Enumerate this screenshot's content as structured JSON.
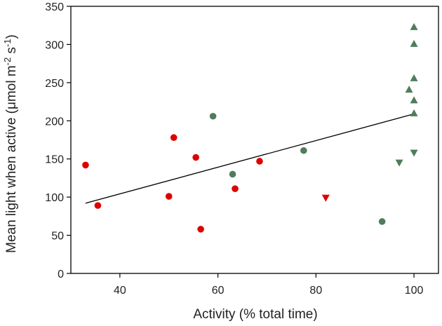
{
  "chart_data": {
    "type": "scatter",
    "title": "",
    "xlabel": "Activity (% total time)",
    "ylabel_main": "Mean light when active (μmol m",
    "ylabel_exp1": "-2",
    "ylabel_mid": " s",
    "ylabel_exp2": "-1",
    "ylabel_end": ")",
    "xlim": [
      30,
      105
    ],
    "ylim": [
      0,
      350
    ],
    "xticks": [
      40,
      60,
      80,
      100
    ],
    "yticks": [
      0,
      50,
      100,
      150,
      200,
      250,
      300,
      350
    ],
    "colors": {
      "red": "#dd0000",
      "green": "#4f7d5c",
      "line": "#000000"
    },
    "series": [
      {
        "name": "red-circles",
        "marker": "circle",
        "color": "red",
        "points": [
          {
            "x": 33,
            "y": 142
          },
          {
            "x": 35.5,
            "y": 89
          },
          {
            "x": 50,
            "y": 101
          },
          {
            "x": 51,
            "y": 178
          },
          {
            "x": 55.5,
            "y": 152
          },
          {
            "x": 56.5,
            "y": 58
          },
          {
            "x": 63.5,
            "y": 111
          },
          {
            "x": 68.5,
            "y": 147
          }
        ]
      },
      {
        "name": "green-circles",
        "marker": "circle",
        "color": "green",
        "points": [
          {
            "x": 59,
            "y": 206
          },
          {
            "x": 63,
            "y": 130
          },
          {
            "x": 77.5,
            "y": 161
          },
          {
            "x": 93.5,
            "y": 68
          }
        ]
      },
      {
        "name": "green-triangles-up",
        "marker": "triangle-up",
        "color": "green",
        "points": [
          {
            "x": 100,
            "y": 323
          },
          {
            "x": 100,
            "y": 301
          },
          {
            "x": 100,
            "y": 256
          },
          {
            "x": 99,
            "y": 241
          },
          {
            "x": 100,
            "y": 227
          },
          {
            "x": 100,
            "y": 210
          }
        ]
      },
      {
        "name": "green-triangles-down",
        "marker": "triangle-down",
        "color": "green",
        "points": [
          {
            "x": 100,
            "y": 158
          },
          {
            "x": 97,
            "y": 145
          }
        ]
      },
      {
        "name": "red-triangles-down",
        "marker": "triangle-down",
        "color": "red",
        "points": [
          {
            "x": 82,
            "y": 99
          }
        ]
      }
    ],
    "trendline": {
      "x1": 33,
      "y1": 92,
      "x2": 100,
      "y2": 209
    }
  }
}
